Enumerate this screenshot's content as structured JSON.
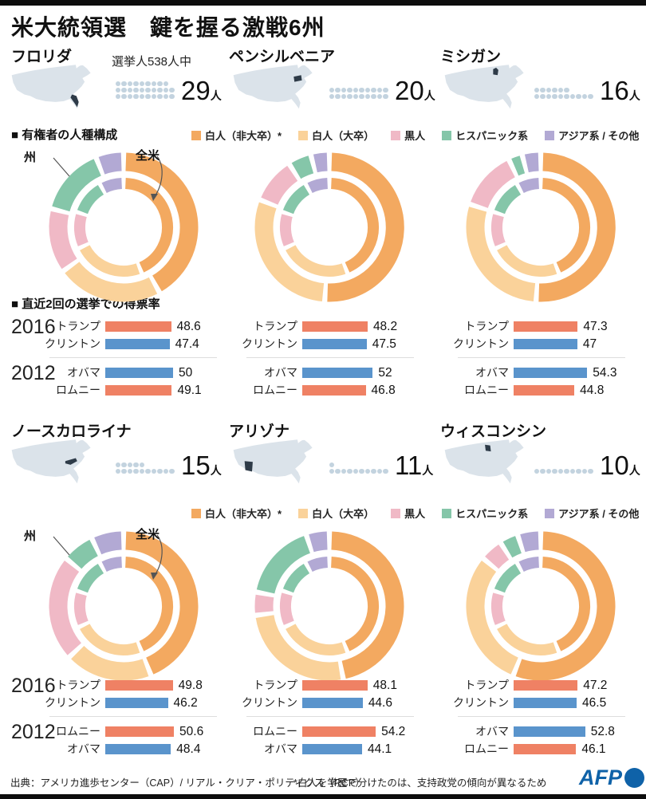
{
  "title": "米大統領選　鍵を握る激戦6州",
  "electoral_note": "選挙人538人中",
  "section_titles": {
    "race": "■ 有権者の人種構成",
    "votes": "■ 直近2回の選挙での得票率"
  },
  "ring_labels": {
    "state": "州",
    "national": "全米"
  },
  "person_suffix": "人",
  "legend": [
    {
      "label": "白人（非大卒）*",
      "color": "#F3A960"
    },
    {
      "label": "白人（大卒）",
      "color": "#FAD29A"
    },
    {
      "label": "黒人",
      "color": "#F0B9C6"
    },
    {
      "label": "ヒスパニック系",
      "color": "#85C6A9"
    },
    {
      "label": "アジア系 / その他",
      "color": "#B2A9D4"
    }
  ],
  "party_colors": {
    "rep": "#EF8164",
    "dem": "#5A94CC"
  },
  "colors": {
    "dot": "#C3D3DF",
    "map_base": "#DBE3EA",
    "map_highlight": "#2E3B48",
    "divider": "#DDDDDD",
    "annotation": "#555555",
    "afp_blue": "#0F62A8"
  },
  "chart_data": {
    "type": "pie",
    "note": "二重ドーナツ: 外輪=州 / 内輪=全米, 値は%",
    "race_categories": [
      "白人（非大卒）*",
      "白人（大卒）",
      "黒人",
      "ヒスパニック系",
      "アジア系 / その他"
    ],
    "race_colors": [
      "#F3A960",
      "#FAD29A",
      "#F0B9C6",
      "#85C6A9",
      "#B2A9D4"
    ],
    "national_race_pct": [
      44,
      24,
      12,
      12,
      8
    ],
    "states": [
      {
        "name": "フロリダ",
        "map_highlight": "florida",
        "electors": 29,
        "race_pct": [
          42,
          23,
          14,
          15,
          6
        ],
        "elections": [
          {
            "year": "2016",
            "rows": [
              {
                "candidate": "トランプ",
                "party": "rep",
                "pct": 48.6
              },
              {
                "candidate": "クリントン",
                "party": "dem",
                "pct": 47.4
              }
            ]
          },
          {
            "year": "2012",
            "rows": [
              {
                "candidate": "オバマ",
                "party": "dem",
                "pct": 50
              },
              {
                "candidate": "ロムニー",
                "party": "rep",
                "pct": 49.1
              }
            ]
          }
        ]
      },
      {
        "name": "ペンシルベニア",
        "map_highlight": "pennsylvania",
        "electors": 20,
        "race_pct": [
          51,
          30,
          10,
          5,
          4
        ],
        "elections": [
          {
            "year": "2016",
            "rows": [
              {
                "candidate": "トランプ",
                "party": "rep",
                "pct": 48.2
              },
              {
                "candidate": "クリントン",
                "party": "dem",
                "pct": 47.5
              }
            ]
          },
          {
            "year": "2012",
            "rows": [
              {
                "candidate": "オバマ",
                "party": "dem",
                "pct": 52
              },
              {
                "candidate": "ロムニー",
                "party": "rep",
                "pct": 46.8
              }
            ]
          }
        ]
      },
      {
        "name": "ミシガン",
        "map_highlight": "michigan",
        "electors": 16,
        "race_pct": [
          51,
          29,
          13,
          3,
          4
        ],
        "elections": [
          {
            "year": "2016",
            "rows": [
              {
                "candidate": "トランプ",
                "party": "rep",
                "pct": 47.3
              },
              {
                "candidate": "クリントン",
                "party": "dem",
                "pct": 47
              }
            ]
          },
          {
            "year": "2012",
            "rows": [
              {
                "candidate": "オバマ",
                "party": "dem",
                "pct": 54.3
              },
              {
                "candidate": "ロムニー",
                "party": "rep",
                "pct": 44.8
              }
            ]
          }
        ]
      },
      {
        "name": "ノースカロライナ",
        "map_highlight": "north-carolina",
        "electors": 15,
        "race_pct": [
          44,
          19,
          23,
          7,
          7
        ],
        "elections": [
          {
            "year": "2016",
            "rows": [
              {
                "candidate": "トランプ",
                "party": "rep",
                "pct": 49.8
              },
              {
                "candidate": "クリントン",
                "party": "dem",
                "pct": 46.2
              }
            ]
          },
          {
            "year": "2012",
            "rows": [
              {
                "candidate": "ロムニー",
                "party": "rep",
                "pct": 50.6
              },
              {
                "candidate": "オバマ",
                "party": "dem",
                "pct": 48.4
              }
            ]
          }
        ]
      },
      {
        "name": "アリゾナ",
        "map_highlight": "arizona",
        "electors": 11,
        "race_pct": [
          47,
          26,
          5,
          17,
          5
        ],
        "elections": [
          {
            "year": "2016",
            "rows": [
              {
                "candidate": "トランプ",
                "party": "rep",
                "pct": 48.1
              },
              {
                "candidate": "クリントン",
                "party": "dem",
                "pct": 44.6
              }
            ]
          },
          {
            "year": "2012",
            "rows": [
              {
                "candidate": "ロムニー",
                "party": "rep",
                "pct": 54.2
              },
              {
                "candidate": "オバマ",
                "party": "dem",
                "pct": 44.1
              }
            ]
          }
        ]
      },
      {
        "name": "ウィスコンシン",
        "map_highlight": "wisconsin",
        "electors": 10,
        "race_pct": [
          56,
          30,
          5,
          4,
          5
        ],
        "elections": [
          {
            "year": "2016",
            "rows": [
              {
                "candidate": "トランプ",
                "party": "rep",
                "pct": 47.2
              },
              {
                "candidate": "クリントン",
                "party": "dem",
                "pct": 46.5
              }
            ]
          },
          {
            "year": "2012",
            "rows": [
              {
                "candidate": "オバマ",
                "party": "dem",
                "pct": 52.8
              },
              {
                "candidate": "ロムニー",
                "party": "rep",
                "pct": 46.1
              }
            ]
          }
        ]
      }
    ]
  },
  "footer": {
    "source": "出典：アメリカ進歩センター（CAP）/ リアル・クリア・ポリティクス（RCP）",
    "note": "*白人を学歴で分けたのは、支持政党の傾向が異なるため",
    "logo": "AFP"
  }
}
